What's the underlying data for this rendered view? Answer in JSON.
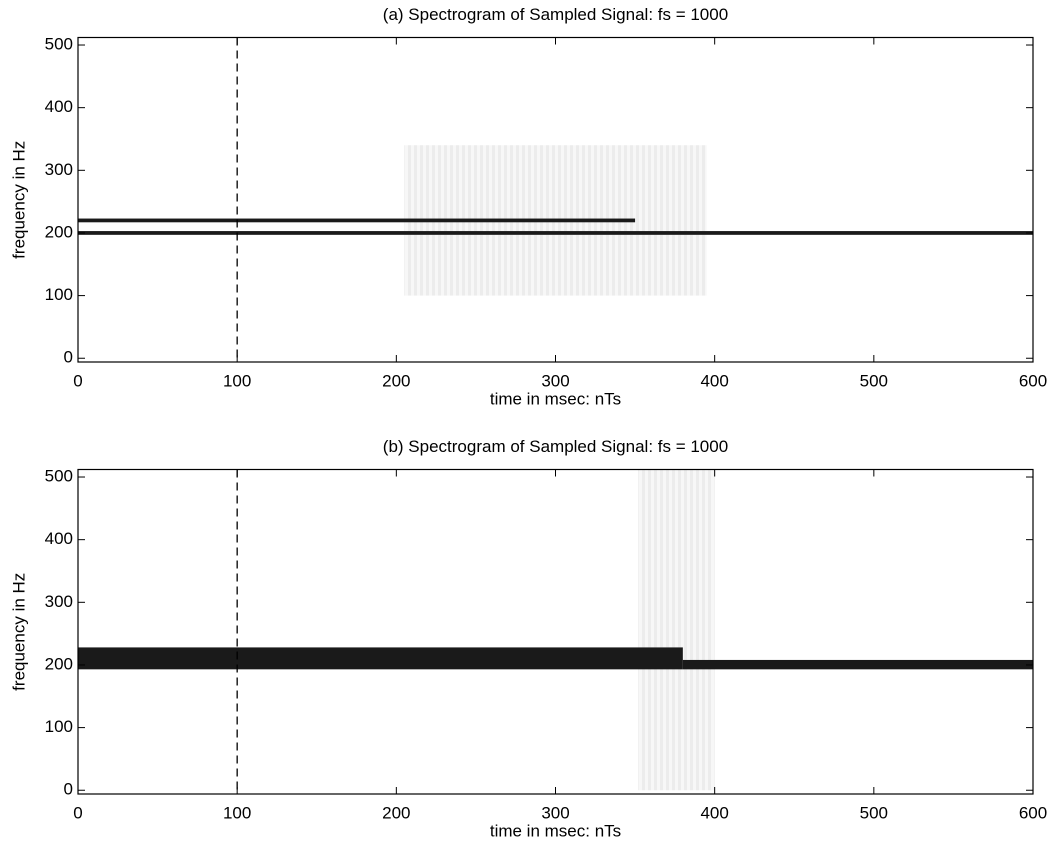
{
  "chart_data": [
    {
      "type": "spectrogram",
      "title": "(a) Spectrogram of Sampled Signal:  fs = 1000",
      "xlabel": "time in msec:  nTs",
      "ylabel": "frequency in Hz",
      "xlim": [
        0,
        600
      ],
      "ylim": [
        -6,
        512
      ],
      "xticks": [
        0,
        100,
        200,
        300,
        400,
        500,
        600
      ],
      "yticks": [
        0,
        100,
        200,
        300,
        400,
        500
      ],
      "vline": 100,
      "color": "#1a1a1a",
      "tracks": [
        {
          "x": [
            0,
            350
          ],
          "y": [
            217,
            223
          ]
        },
        {
          "x": [
            0,
            600
          ],
          "y": [
            197,
            203
          ]
        }
      ],
      "artifacts": [
        {
          "x": [
            205,
            395
          ],
          "y": [
            100,
            340
          ]
        }
      ]
    },
    {
      "type": "spectrogram",
      "title": "(b) Spectrogram of Sampled Signal:  fs = 1000",
      "xlabel": "time in msec:  nTs",
      "ylabel": "frequency in Hz",
      "xlim": [
        0,
        600
      ],
      "ylim": [
        -6,
        512
      ],
      "xticks": [
        0,
        100,
        200,
        300,
        400,
        500,
        600
      ],
      "yticks": [
        0,
        100,
        200,
        300,
        400,
        500
      ],
      "vline": 100,
      "color": "#1a1a1a",
      "tracks": [
        {
          "x": [
            0,
            380
          ],
          "y": [
            193,
            228
          ]
        },
        {
          "x": [
            380,
            600
          ],
          "y": [
            193,
            208
          ]
        }
      ],
      "artifacts": [
        {
          "x": [
            352,
            400
          ],
          "y": [
            0,
            512
          ]
        }
      ]
    }
  ]
}
